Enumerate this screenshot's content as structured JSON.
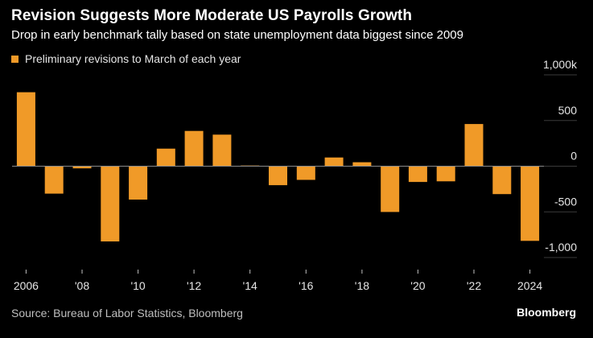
{
  "header": {
    "title": "Revision Suggests More Moderate US Payrolls Growth",
    "subtitle": "Drop in early benchmark tally based on state unemployment data biggest since 2009"
  },
  "legend": {
    "label": "Preliminary revisions to March of each year"
  },
  "footer": {
    "source": "Source: Bureau of Labor Statistics, Bloomberg",
    "brand": "Bloomberg"
  },
  "colors": {
    "bar": "#f09a28",
    "background": "#000000",
    "zero_line": "#8a8a8a",
    "grid": "#3a3a3a"
  },
  "chart_data": {
    "type": "bar",
    "title": "Revision Suggests More Moderate US Payrolls Growth",
    "subtitle": "Drop in early benchmark tally based on state unemployment data biggest since 2009",
    "categories": [
      2006,
      2007,
      2008,
      2009,
      2010,
      2011,
      2012,
      2013,
      2014,
      2015,
      2016,
      2017,
      2018,
      2019,
      2020,
      2021,
      2022,
      2023,
      2024
    ],
    "series": [
      {
        "name": "Preliminary revisions to March of each year",
        "values": [
          810,
          -300,
          -24,
          -824,
          -366,
          192,
          386,
          345,
          7,
          -208,
          -150,
          95,
          43,
          -501,
          -173,
          -166,
          462,
          -306,
          -818
        ]
      }
    ],
    "x_tick_labels": [
      {
        "year": 2006,
        "label": "2006"
      },
      {
        "year": 2008,
        "label": "'08"
      },
      {
        "year": 2010,
        "label": "'10"
      },
      {
        "year": 2012,
        "label": "'12"
      },
      {
        "year": 2014,
        "label": "'14"
      },
      {
        "year": 2016,
        "label": "'16"
      },
      {
        "year": 2018,
        "label": "'18"
      },
      {
        "year": 2020,
        "label": "'20"
      },
      {
        "year": 2022,
        "label": "'22"
      },
      {
        "year": 2024,
        "label": "2024"
      }
    ],
    "y_ticks": [
      {
        "value": 1000,
        "label": "1,000k"
      },
      {
        "value": 500,
        "label": "500"
      },
      {
        "value": 0,
        "label": "0"
      },
      {
        "value": -500,
        "label": "-500"
      },
      {
        "value": -1000,
        "label": "-1,000"
      }
    ],
    "ylim": [
      -1000,
      1000
    ],
    "y_axis_side": "right",
    "grid": false,
    "legend_position": "top-left"
  }
}
